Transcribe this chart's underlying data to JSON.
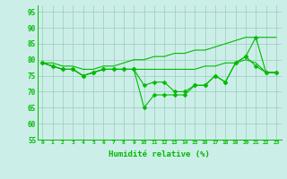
{
  "x": [
    0,
    1,
    2,
    3,
    4,
    5,
    6,
    7,
    8,
    9,
    10,
    11,
    12,
    13,
    14,
    15,
    16,
    17,
    18,
    19,
    20,
    21,
    22,
    23
  ],
  "line_top": [
    79,
    79,
    78,
    78,
    77,
    77,
    78,
    78,
    79,
    80,
    80,
    81,
    81,
    82,
    82,
    83,
    83,
    84,
    85,
    86,
    87,
    87,
    87,
    87
  ],
  "line_mid": [
    79,
    78,
    77,
    77,
    75,
    76,
    77,
    77,
    77,
    77,
    77,
    77,
    77,
    77,
    77,
    77,
    78,
    78,
    79,
    79,
    80,
    79,
    76,
    76
  ],
  "line_low": [
    79,
    78,
    77,
    77,
    75,
    76,
    77,
    77,
    77,
    77,
    65,
    69,
    69,
    69,
    69,
    72,
    72,
    75,
    73,
    79,
    81,
    87,
    76,
    76
  ],
  "line_low2": [
    79,
    78,
    77,
    77,
    75,
    76,
    77,
    77,
    77,
    77,
    72,
    73,
    73,
    70,
    70,
    72,
    72,
    75,
    73,
    79,
    81,
    78,
    76,
    76
  ],
  "ylim": [
    55,
    97
  ],
  "yticks": [
    55,
    60,
    65,
    70,
    75,
    80,
    85,
    90,
    95
  ],
  "xlim": [
    -0.5,
    23.5
  ],
  "xlabel": "Humidité relative (%)",
  "line_color": "#00bb00",
  "bg_color": "#cceee8",
  "grid_color": "#99ccbb"
}
